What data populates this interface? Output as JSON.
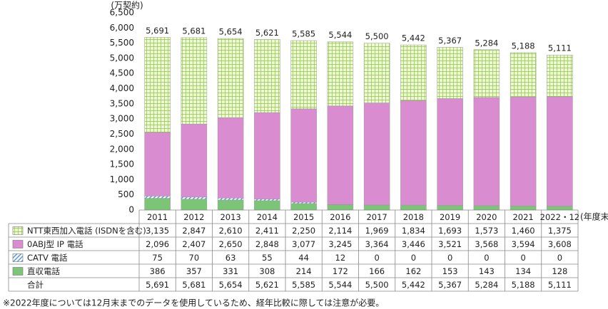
{
  "chart_data": {
    "type": "stacked_bar",
    "y_unit": "(万契約)",
    "x_unit": "(年度末)",
    "footnote": "※2022年度については12月末までのデータを使用しているため、経年比較に際しては注意が必要。",
    "categories": [
      "2011",
      "2012",
      "2013",
      "2014",
      "2015",
      "2016",
      "2017",
      "2018",
      "2019",
      "2020",
      "2021",
      "2022・12"
    ],
    "ylim": [
      0,
      6500
    ],
    "yticks": [
      0,
      500,
      {
        "value": 1000,
        "label": "1,000"
      },
      {
        "value": 1500,
        "label": "1,500"
      },
      {
        "value": 2000,
        "label": "2,000"
      },
      {
        "value": 2500,
        "label": "2,500"
      },
      {
        "value": 3000,
        "label": "3,000"
      },
      {
        "value": 3500,
        "label": "3,500"
      },
      {
        "value": 4000,
        "label": "4,000"
      },
      {
        "value": 4500,
        "label": "4,500"
      },
      {
        "value": 5000,
        "label": "5,000"
      },
      {
        "value": 5500,
        "label": "5,500"
      },
      {
        "value": 6000,
        "label": "6,000"
      },
      {
        "value": 6500,
        "label": "6,500"
      }
    ],
    "series": [
      {
        "name": "NTT東西加入電話 (ISDNを含む)",
        "color": "#8cc63f",
        "pattern": "grid",
        "values": [
          3135,
          2847,
          2610,
          2411,
          2250,
          2114,
          1969,
          1834,
          1693,
          1573,
          1460,
          1375
        ],
        "value_labels": [
          "3,135",
          "2,847",
          "2,610",
          "2,411",
          "2,250",
          "2,114",
          "1,969",
          "1,834",
          "1,693",
          "1,573",
          "1,460",
          "1,375"
        ]
      },
      {
        "name": "0ABJ型 IP 電話",
        "color": "#d98cd0",
        "values": [
          2096,
          2407,
          2650,
          2848,
          3077,
          3245,
          3364,
          3446,
          3521,
          3568,
          3594,
          3608
        ],
        "value_labels": [
          "2,096",
          "2,407",
          "2,650",
          "2,848",
          "3,077",
          "3,245",
          "3,364",
          "3,446",
          "3,521",
          "3,568",
          "3,594",
          "3,608"
        ]
      },
      {
        "name": "CATV 電話",
        "color": "#4a8fd8",
        "pattern": "hatch",
        "values": [
          75,
          70,
          63,
          55,
          44,
          12,
          0,
          0,
          0,
          0,
          0,
          0
        ],
        "value_labels": [
          "75",
          "70",
          "63",
          "55",
          "44",
          "12",
          "0",
          "0",
          "0",
          "0",
          "0",
          "0"
        ]
      },
      {
        "name": "直収電話",
        "color": "#7cc576",
        "values": [
          386,
          357,
          331,
          308,
          214,
          172,
          166,
          162,
          153,
          143,
          134,
          128
        ],
        "value_labels": [
          "386",
          "357",
          "331",
          "308",
          "214",
          "172",
          "166",
          "162",
          "153",
          "143",
          "134",
          "128"
        ]
      }
    ],
    "totals": {
      "name": "合計",
      "values": [
        5691,
        5681,
        5654,
        5621,
        5585,
        5544,
        5500,
        5442,
        5367,
        5284,
        5188,
        5111
      ],
      "value_labels": [
        "5,691",
        "5,681",
        "5,654",
        "5,621",
        "5,585",
        "5,544",
        "5,500",
        "5,442",
        "5,367",
        "5,284",
        "5,188",
        "5,111"
      ]
    }
  }
}
